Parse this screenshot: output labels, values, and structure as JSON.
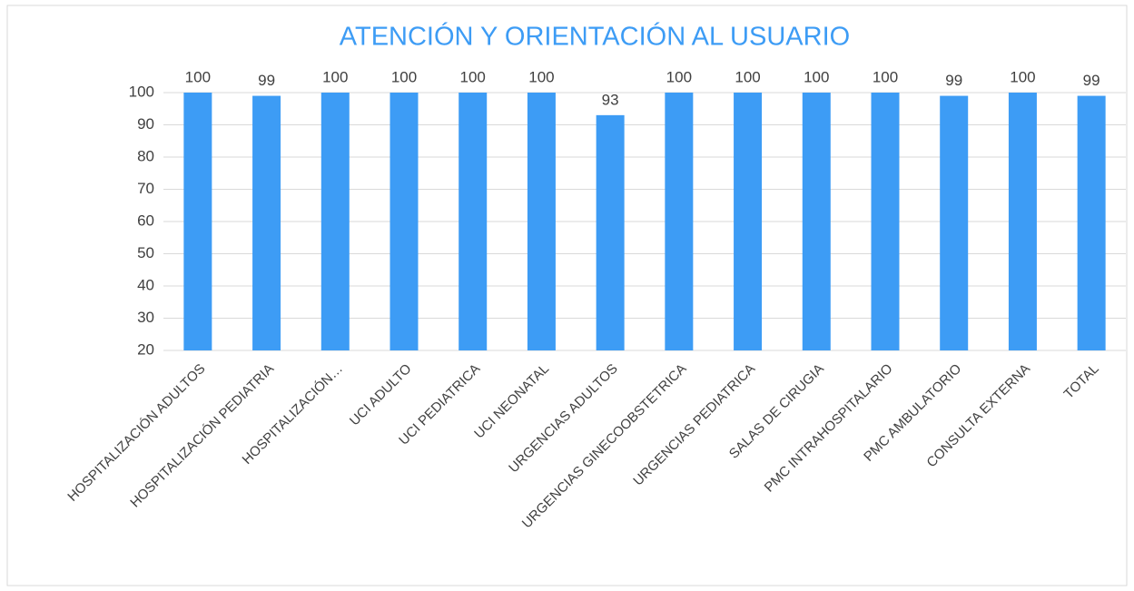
{
  "chart_data": {
    "type": "bar",
    "title": "ATENCIÓN Y ORIENTACIÓN AL USUARIO",
    "categories": [
      "HOSPITALIZACIÓN ADULTOS",
      "HOSPITALIZACIÓN PEDIATRIA",
      "HOSPITALIZACIÓN…",
      "UCI ADULTO",
      "UCI PEDIATRICA",
      "UCI NEONATAL",
      "URGENCIAS ADULTOS",
      "URGENCIAS GINECOOBSTETRICA",
      "URGENCIAS PEDIATRICA",
      "SALAS DE CIRUGIA",
      "PMC INTRAHOSPITALARIO",
      "PMC AMBULATORIO",
      "CONSULTA EXTERNA",
      "TOTAL"
    ],
    "values": [
      100,
      99,
      100,
      100,
      100,
      100,
      93,
      100,
      100,
      100,
      100,
      99,
      100,
      99
    ],
    "color": "#3d9cf5",
    "ylim": [
      20,
      100
    ],
    "yticks": [
      20,
      30,
      40,
      50,
      60,
      70,
      80,
      90,
      100
    ],
    "grid": true
  }
}
